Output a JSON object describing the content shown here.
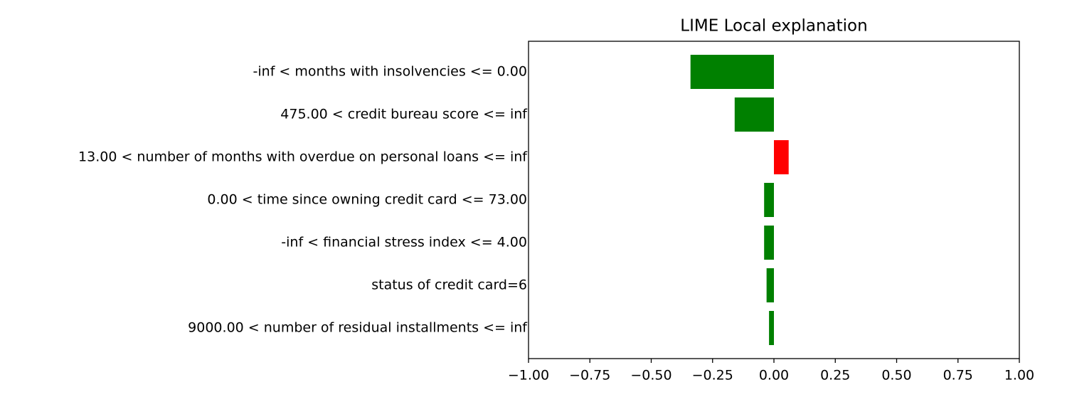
{
  "chart_data": {
    "type": "barh",
    "title": "LIME Local explanation",
    "categories": [
      "-inf < months with insolvencies <= 0.00",
      "475.00 < credit bureau score <= inf",
      "13.00 < number of months with overdue on personal loans <= inf",
      "0.00 < time since owning credit card <= 73.00",
      "-inf < financial stress index <= 4.00",
      "status of credit card=6",
      "9000.00 < number of residual installments <= inf"
    ],
    "values": [
      -0.34,
      -0.16,
      0.06,
      -0.04,
      -0.04,
      -0.03,
      -0.02
    ],
    "colors": [
      "#008000",
      "#008000",
      "#ff0000",
      "#008000",
      "#008000",
      "#008000",
      "#008000"
    ],
    "xlim": [
      -1,
      1
    ],
    "xticks": [
      {
        "value": -1,
        "label": "−1.00"
      },
      {
        "value": -0.75,
        "label": "−0.75"
      },
      {
        "value": -0.5,
        "label": "−0.50"
      },
      {
        "value": -0.25,
        "label": "−0.25"
      },
      {
        "value": 0,
        "label": "0.00"
      },
      {
        "value": 0.25,
        "label": "0.25"
      },
      {
        "value": 0.5,
        "label": "0.50"
      },
      {
        "value": 0.75,
        "label": "0.75"
      },
      {
        "value": 1,
        "label": "1.00"
      }
    ]
  }
}
